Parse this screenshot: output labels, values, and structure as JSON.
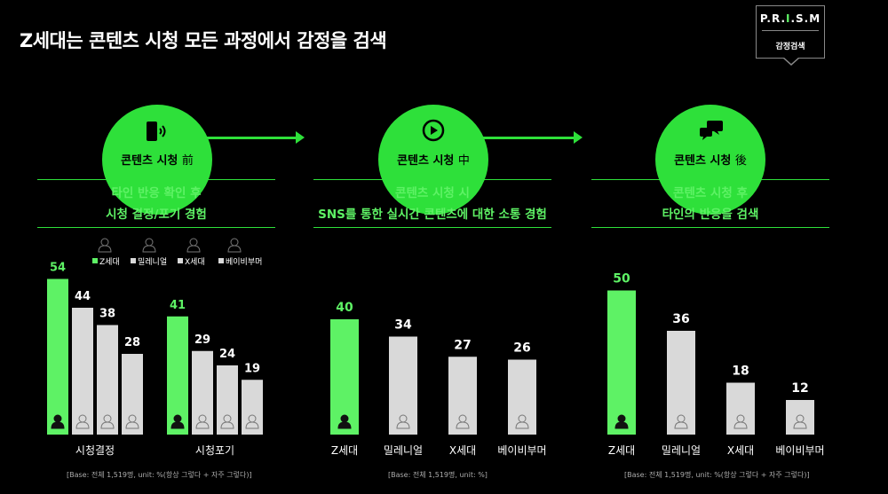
{
  "title": "Z세대는 콘텐츠 시청 모든 과정에서 감정을 검색",
  "badge": {
    "logo_pre": "P.R.",
    "logo_hl": "I",
    "logo_post": ".S.M",
    "sub": "감정검색"
  },
  "colors": {
    "accent": "#2ee03a",
    "z_bar": "#5ef265",
    "other_bar": "#d9d9d9"
  },
  "stages": [
    {
      "label": "콘텐츠 시청",
      "hanja": "前",
      "icon": "phone-sound-icon",
      "desc_line1": "타인 반응 확인 후",
      "desc_line2": "시청 결정/포기 경험"
    },
    {
      "label": "콘텐츠 시청",
      "hanja": "中",
      "icon": "play-icon",
      "desc_line1": "콘텐츠 시청 시",
      "desc_line2": "SNS를 통한 실시간 콘텐츠에 대한 소통 경험"
    },
    {
      "label": "콘텐츠 시청",
      "hanja": "後",
      "icon": "chat-bubbles-icon",
      "desc_line1": "콘텐츠 시청 후",
      "desc_line2": "타인의 반응을 검색"
    }
  ],
  "legend": [
    "Z세대",
    "밀레니얼",
    "X세대",
    "베이비부머"
  ],
  "chart_data": [
    {
      "type": "bar",
      "categories": [
        "시청결정",
        "시청포기"
      ],
      "series": [
        {
          "name": "Z세대",
          "values": [
            54,
            41
          ]
        },
        {
          "name": "밀레니얼",
          "values": [
            44,
            29
          ]
        },
        {
          "name": "X세대",
          "values": [
            38,
            24
          ]
        },
        {
          "name": "베이비부머",
          "values": [
            28,
            19
          ]
        }
      ],
      "ylim": [
        0,
        60
      ],
      "base_note": "[Base: 전체 1,519명, unit: %(항상 그렇다 + 자주 그렇다)]"
    },
    {
      "type": "bar",
      "categories": [
        "Z세대",
        "밀레니얼",
        "X세대",
        "베이비부머"
      ],
      "values": [
        40,
        34,
        27,
        26
      ],
      "ylim": [
        0,
        60
      ],
      "base_note": "[Base: 전체 1,519명, unit: %]"
    },
    {
      "type": "bar",
      "categories": [
        "Z세대",
        "밀레니얼",
        "X세대",
        "베이비부머"
      ],
      "values": [
        50,
        36,
        18,
        12
      ],
      "ylim": [
        0,
        60
      ],
      "base_note": "[Base: 전체 1,519명, unit: %(항상 그렇다 + 자주 그렇다)]"
    }
  ]
}
